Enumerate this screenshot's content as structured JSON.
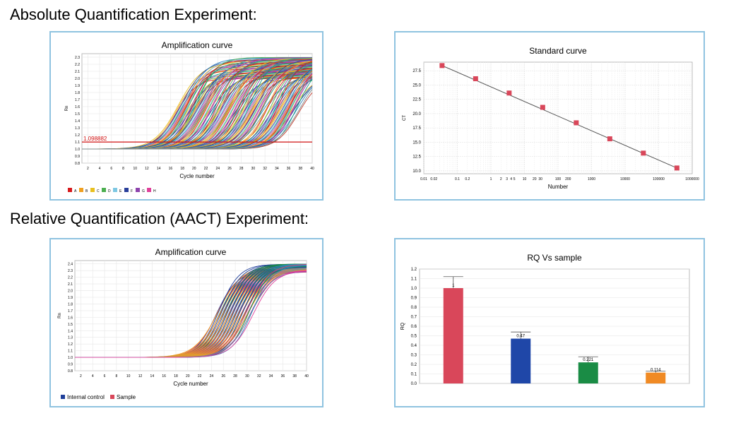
{
  "headings": {
    "absolute": "Absolute Quantification Experiment:",
    "relative": "Relative Quantification (AACT) Experiment:"
  },
  "chart_data": [
    {
      "id": "abs-amp",
      "type": "line",
      "title": "Amplification curve",
      "xlabel": "Cycle number",
      "ylabel": "Rn",
      "xlim": [
        1,
        40
      ],
      "ylim": [
        0.8,
        2.35
      ],
      "xticks": [
        2,
        4,
        6,
        8,
        10,
        12,
        14,
        16,
        18,
        20,
        22,
        24,
        26,
        28,
        30,
        32,
        34,
        36,
        38,
        40
      ],
      "yticks": [
        0.8,
        0.9,
        1.0,
        1.1,
        1.2,
        1.3,
        1.4,
        1.5,
        1.6,
        1.7,
        1.8,
        1.9,
        2.0,
        2.1,
        2.2,
        2.3
      ],
      "threshold": {
        "value": 1.098882,
        "label": "1.098882",
        "color": "#d01010"
      },
      "legend": {
        "placement": "bottom-left",
        "entries": [
          {
            "name": "A",
            "color": "#d7191c"
          },
          {
            "name": "B",
            "color": "#f0a020"
          },
          {
            "name": "C",
            "color": "#e8c020"
          },
          {
            "name": "D",
            "color": "#4caf50"
          },
          {
            "name": "E",
            "color": "#7ec8e3"
          },
          {
            "name": "F",
            "color": "#2a3f9a"
          },
          {
            "name": "G",
            "color": "#8e44ad"
          },
          {
            "name": "H",
            "color": "#e0409a"
          }
        ]
      },
      "curve_midpoints": [
        18,
        19.5,
        21,
        23,
        25,
        27,
        29,
        31,
        33.5,
        35.5,
        37
      ],
      "plateau_range": [
        2.0,
        2.3
      ],
      "baseline": 1.0,
      "grid": true
    },
    {
      "id": "std-curve",
      "type": "scatter",
      "title": "Standard curve",
      "xlabel": "Number",
      "ylabel": "CT",
      "xscale": "log",
      "xlim": [
        0.01,
        1000000
      ],
      "ylim": [
        9.5,
        29
      ],
      "xtick_labels": [
        {
          "v": 0.01,
          "t": "0.01"
        },
        {
          "v": 0.02,
          "t": "0.02"
        },
        {
          "v": 0.1,
          "t": "0.1"
        },
        {
          "v": 0.2,
          "t": "0.2"
        },
        {
          "v": 1,
          "t": "1"
        },
        {
          "v": 2,
          "t": "2"
        },
        {
          "v": 3,
          "t": "3"
        },
        {
          "v": 4,
          "t": "4"
        },
        {
          "v": 5,
          "t": "5"
        },
        {
          "v": 10,
          "t": "10"
        },
        {
          "v": 20,
          "t": "20"
        },
        {
          "v": 30,
          "t": "30"
        },
        {
          "v": 100,
          "t": "100"
        },
        {
          "v": 200,
          "t": "200"
        },
        {
          "v": 1000,
          "t": "1000"
        },
        {
          "v": 10000,
          "t": "10000"
        },
        {
          "v": 100000,
          "t": "100000"
        },
        {
          "v": 1000000,
          "t": "1000000"
        }
      ],
      "yticks": [
        10.0,
        12.5,
        15.0,
        17.5,
        20.0,
        22.5,
        25.0,
        27.5
      ],
      "points": [
        {
          "x": 0.035,
          "y": 28.4
        },
        {
          "x": 0.35,
          "y": 26.1
        },
        {
          "x": 3.5,
          "y": 23.6
        },
        {
          "x": 35,
          "y": 21.1
        },
        {
          "x": 350,
          "y": 18.4
        },
        {
          "x": 3500,
          "y": 15.6
        },
        {
          "x": 35000,
          "y": 13.1
        },
        {
          "x": 350000,
          "y": 10.5
        }
      ],
      "marker_color": "#d9475a",
      "line_color": "#555555",
      "grid": true
    },
    {
      "id": "rel-amp",
      "type": "line",
      "title": "Amplification curve",
      "xlabel": "Cycle number",
      "ylabel": "Rn",
      "xlim": [
        1,
        40
      ],
      "ylim": [
        0.8,
        2.45
      ],
      "xticks": [
        2,
        4,
        6,
        8,
        10,
        12,
        14,
        16,
        18,
        20,
        22,
        24,
        26,
        28,
        30,
        32,
        34,
        36,
        38,
        40
      ],
      "yticks": [
        0.8,
        0.9,
        1.0,
        1.1,
        1.2,
        1.3,
        1.4,
        1.5,
        1.6,
        1.7,
        1.8,
        1.9,
        2.0,
        2.1,
        2.2,
        2.3,
        2.4
      ],
      "legend": {
        "placement": "bottom-left",
        "entries": [
          {
            "name": "Internal control",
            "color": "#1f3f9a"
          },
          {
            "name": "Sample",
            "color": "#d9475a"
          }
        ]
      },
      "curve_midpoints": [
        25.5,
        26,
        26.5,
        27,
        27.5,
        28,
        28.5,
        29,
        29.5,
        30,
        30.5
      ],
      "plateau_range": [
        2.28,
        2.4
      ],
      "baseline": 1.0,
      "grid": true
    },
    {
      "id": "rq-bar",
      "type": "bar",
      "title": "RQ Vs sample",
      "ylabel": "RQ",
      "ylim": [
        0,
        1.2
      ],
      "yticks": [
        0.0,
        0.1,
        0.2,
        0.3,
        0.4,
        0.5,
        0.6,
        0.7,
        0.8,
        0.9,
        1.0,
        1.1,
        1.2
      ],
      "bars": [
        {
          "value": 1.0,
          "label": "1",
          "color": "#d9475a",
          "err_high": 1.12
        },
        {
          "value": 0.47,
          "label": "0.47",
          "color": "#1f47a8",
          "err_high": 0.54
        },
        {
          "value": 0.221,
          "label": "0.221",
          "color": "#1a8c45",
          "err_high": 0.28
        },
        {
          "value": 0.114,
          "label": "0.114",
          "color": "#f08a24",
          "err_high": 0.13
        }
      ],
      "grid": true
    }
  ]
}
